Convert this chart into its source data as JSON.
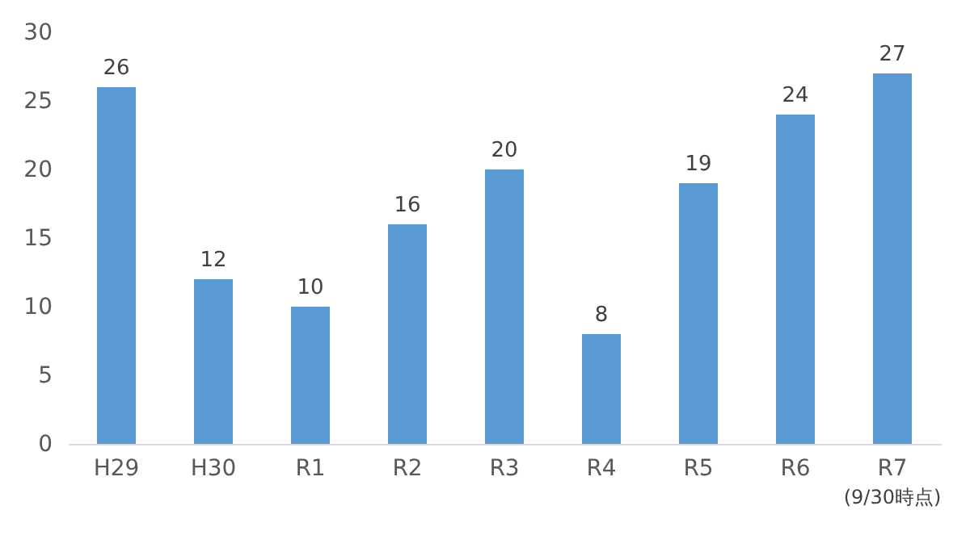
{
  "chart_data": {
    "type": "bar",
    "categories": [
      "H29",
      "H30",
      "R1",
      "R2",
      "R3",
      "R4",
      "R5",
      "R6",
      "R7"
    ],
    "values": [
      26,
      12,
      10,
      16,
      20,
      8,
      19,
      24,
      27
    ],
    "color": "#5b9bd5",
    "ylim": [
      0,
      30
    ],
    "yticks": [
      0,
      5,
      10,
      15,
      20,
      25,
      30
    ],
    "grid": false,
    "data_labels": true,
    "annotations": [
      "(9/30時点)"
    ]
  }
}
